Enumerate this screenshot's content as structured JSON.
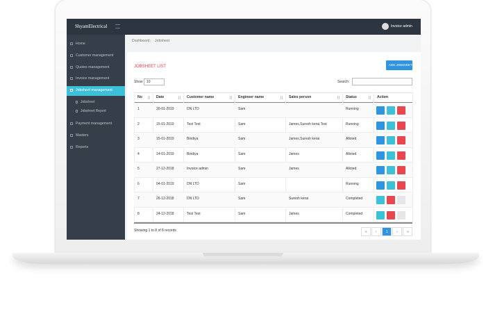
{
  "header": {
    "logo": "ShyamElectrical",
    "user": "Invoice admin"
  },
  "sidebar": {
    "items": [
      "Home",
      "Customer management",
      "Quotes management",
      "Invoice management",
      "Jobsheet management"
    ],
    "subitems": [
      "Jobsheet",
      "Jobsheet Report"
    ],
    "items_after": [
      "Payment management",
      "Masters",
      "Reports"
    ]
  },
  "breadcrumb": [
    "Dashboard",
    "Jobsheet"
  ],
  "card": {
    "title": "JOBSHEET LIST",
    "add_button": "ADD JOBSHEET",
    "show_label": "Show",
    "show_value": "10",
    "search_label": "Search:"
  },
  "table": {
    "columns": [
      "No",
      "Date",
      "Customer name",
      "Engineer name",
      "Sales person",
      "Status",
      "Action"
    ],
    "rows": [
      [
        "1",
        "30-01-2019",
        "DN LTD",
        "Sam",
        "",
        "Running"
      ],
      [
        "2",
        "15-01-2019",
        "Test Test",
        "Sam",
        "James,Suresh kerai,Test",
        "Running"
      ],
      [
        "3",
        "15-01-2019",
        "Bindiya",
        "Sam",
        "James,Suresh kerai",
        "Alloted"
      ],
      [
        "4",
        "14-01-2019",
        "Bindiya",
        "Sam",
        "James",
        "Alloted"
      ],
      [
        "5",
        "27-12-2018",
        "Invoice admin",
        "Sam",
        "James",
        "Alloted"
      ],
      [
        "6",
        "04-01-2019",
        "DN LTD",
        "Sam",
        "",
        "Running"
      ],
      [
        "7",
        "26-12-2018",
        "DN LTD",
        "Sam",
        "Suresh kerai",
        "Completed"
      ],
      [
        "8",
        "24-12-2018",
        "Test Test",
        "Sam",
        "James",
        "Completed"
      ]
    ]
  },
  "footer": {
    "info": "Showing 1 to 8 of 8 records",
    "pagination": [
      "«",
      "‹",
      "1",
      "›",
      "»"
    ]
  }
}
